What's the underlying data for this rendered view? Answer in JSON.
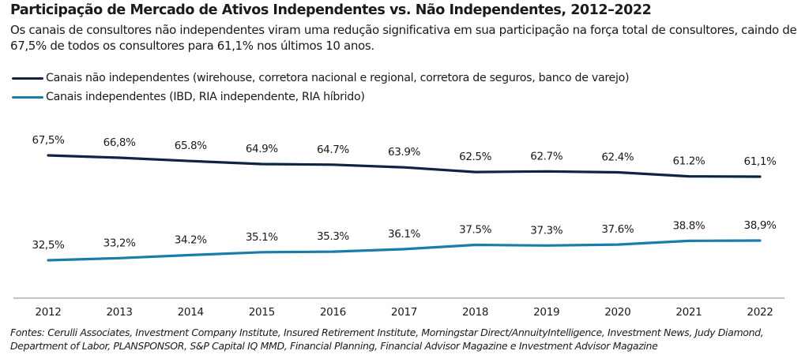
{
  "title": "Participação de Mercado de Ativos Independentes vs. Não Independentes, 2012–2022",
  "subtitle": "Os canais de consultores não independentes viram uma redução significativa em sua participação na força total de consultores, caindo de 67,5% de todos os consultores para 61,1% nos últimos 10 anos.",
  "legend": [
    {
      "label": "Canais não independentes (wirehouse, corretora nacional e regional, corretora de seguros, banco de varejo)",
      "color": "#0e2442"
    },
    {
      "label": "Canais independentes (IBD, RIA independente, RIA híbrido)",
      "color": "#1b7cab"
    }
  ],
  "source": "Fontes: Cerulli Associates, Investment Company Institute, Insured Retirement Institute, Morningstar Direct/AnnuityIntelligence, Investment News, Judy Diamond, Department of Labor, PLANSPONSOR, S&P Capital IQ MMD, Financial Planning, Financial Advisor Magazine e Investment Advisor Magazine",
  "chart_data": {
    "type": "line",
    "title": "Participação de Mercado de Ativos Independentes vs. Não Independentes, 2012–2022",
    "xlabel": "",
    "ylabel": "",
    "grid": false,
    "legend_position": "top-left",
    "x": [
      "2012",
      "2013",
      "2014",
      "2015",
      "2016",
      "2017",
      "2018",
      "2019",
      "2020",
      "2021",
      "2022"
    ],
    "series": [
      {
        "name": "Canais não independentes (wirehouse, corretora nacional e regional, corretora de seguros, banco de varejo)",
        "color": "#0e2442",
        "values": [
          67.5,
          66.8,
          65.8,
          64.9,
          64.7,
          63.9,
          62.5,
          62.7,
          62.4,
          61.2,
          61.1
        ],
        "labels": [
          "67,5%",
          "66,8%",
          "65.8%",
          "64.9%",
          "64.7%",
          "63.9%",
          "62.5%",
          "62.7%",
          "62.4%",
          "61.2%",
          "61,1%"
        ]
      },
      {
        "name": "Canais independentes (IBD, RIA independente, RIA híbrido)",
        "color": "#1b7cab",
        "values": [
          32.5,
          33.2,
          34.2,
          35.1,
          35.3,
          36.1,
          37.5,
          37.3,
          37.6,
          38.8,
          38.9
        ],
        "labels": [
          "32,5%",
          "33,2%",
          "34.2%",
          "35.1%",
          "35.3%",
          "36.1%",
          "37.5%",
          "37.3%",
          "37.6%",
          "38.8%",
          "38,9%"
        ]
      }
    ]
  }
}
